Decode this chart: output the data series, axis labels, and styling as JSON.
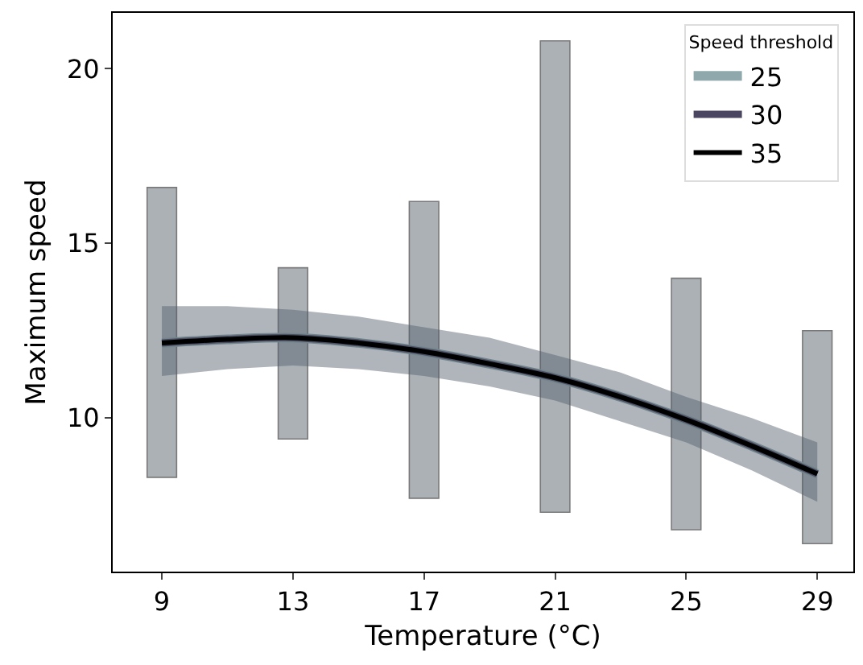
{
  "chart_data": {
    "type": "line",
    "xlabel": "Temperature (°C)",
    "ylabel": "Maximum speed",
    "legend_title": "Speed threshold",
    "legend": "top right",
    "grid": false,
    "marker": "none",
    "line_style": "solid",
    "xlim": [
      7.5,
      30.1
    ],
    "xticks": [
      9,
      13,
      17,
      21,
      25,
      29
    ],
    "ylim": [
      5.6,
      21.6
    ],
    "yticks": [
      10,
      15,
      20
    ],
    "series": [
      {
        "type": "bar",
        "x": [
          9,
          13,
          17,
          21,
          25,
          29
        ],
        "base": [
          8.3,
          9.4,
          7.7,
          7.3,
          6.8,
          6.4
        ],
        "values": [
          8.3,
          4.9,
          8.5,
          13.5,
          7.2,
          6.1
        ],
        "color": "#808890"
      },
      {
        "name": "25",
        "color": "#8fa8ab",
        "x": [
          9,
          11,
          13,
          15,
          17,
          19,
          21,
          23,
          25,
          27,
          29
        ],
        "values": [
          12.15,
          12.25,
          12.3,
          12.15,
          11.9,
          11.55,
          11.15,
          10.6,
          9.95,
          9.2,
          8.4
        ]
      },
      {
        "name": "30",
        "color": "#4a4560",
        "x": [
          9,
          11,
          13,
          15,
          17,
          19,
          21,
          23,
          25,
          27,
          29
        ],
        "values": [
          12.15,
          12.25,
          12.3,
          12.15,
          11.9,
          11.55,
          11.15,
          10.6,
          9.95,
          9.2,
          8.4
        ]
      },
      {
        "name": "35",
        "color": "#000000",
        "x": [
          9,
          11,
          13,
          15,
          17,
          19,
          21,
          23,
          25,
          27,
          29
        ],
        "values": [
          12.15,
          12.25,
          12.3,
          12.15,
          11.9,
          11.55,
          11.15,
          10.6,
          9.95,
          9.2,
          8.4
        ],
        "lower": [
          11.2,
          11.4,
          11.5,
          11.4,
          11.2,
          10.9,
          10.5,
          9.9,
          9.3,
          8.5,
          7.6
        ],
        "upper": [
          13.2,
          13.2,
          13.1,
          12.9,
          12.6,
          12.3,
          11.8,
          11.3,
          10.6,
          10.0,
          9.3
        ]
      }
    ]
  }
}
